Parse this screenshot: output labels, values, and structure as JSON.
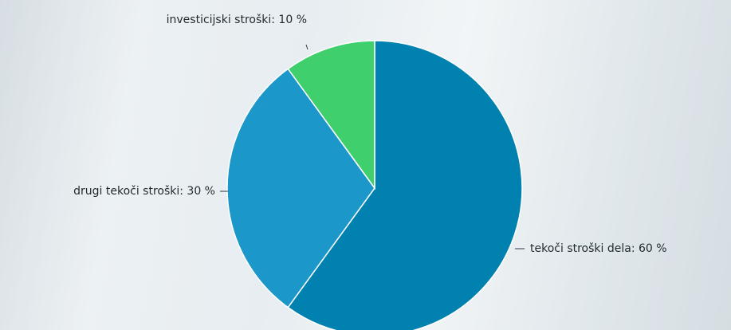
{
  "chart_data": {
    "type": "pie",
    "values": [
      60,
      30,
      10
    ],
    "value_labels": [
      "tekoči stroški dela: 60 %",
      "drugi tekoči stroški: 30 %",
      "investicijski stroški: 10 %"
    ],
    "colors": [
      "#0081b0",
      "#1b97c9",
      "#3fcf6c"
    ]
  }
}
